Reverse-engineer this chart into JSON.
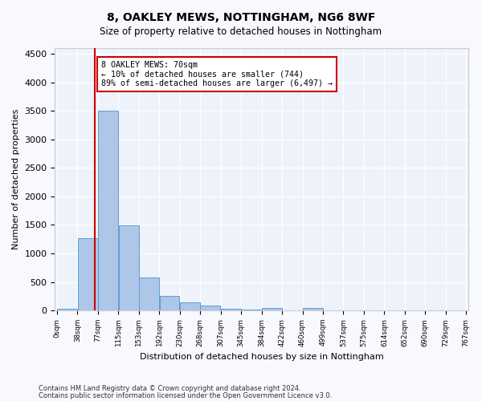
{
  "title1": "8, OAKLEY MEWS, NOTTINGHAM, NG6 8WF",
  "title2": "Size of property relative to detached houses in Nottingham",
  "xlabel": "Distribution of detached houses by size in Nottingham",
  "ylabel": "Number of detached properties",
  "bin_labels": [
    "0sqm",
    "38sqm",
    "77sqm",
    "115sqm",
    "153sqm",
    "192sqm",
    "230sqm",
    "268sqm",
    "307sqm",
    "345sqm",
    "384sqm",
    "422sqm",
    "460sqm",
    "499sqm",
    "537sqm",
    "575sqm",
    "614sqm",
    "652sqm",
    "690sqm",
    "729sqm",
    "767sqm"
  ],
  "bar_values": [
    30,
    1270,
    3500,
    1490,
    580,
    250,
    135,
    80,
    30,
    20,
    50,
    0,
    50,
    0,
    0,
    0,
    0,
    0,
    0,
    0
  ],
  "bar_color": "#aec6e8",
  "bar_edge_color": "#5a9ed6",
  "vline_x": 70,
  "annotation_title": "8 OAKLEY MEWS: 70sqm",
  "annotation_line1": "← 10% of detached houses are smaller (744)",
  "annotation_line2": "89% of semi-detached houses are larger (6,497) →",
  "vline_color": "#cc0000",
  "annotation_edge_color": "#cc0000",
  "ylim": [
    0,
    4600
  ],
  "yticks": [
    0,
    500,
    1000,
    1500,
    2000,
    2500,
    3000,
    3500,
    4000,
    4500
  ],
  "footer1": "Contains HM Land Registry data © Crown copyright and database right 2024.",
  "footer2": "Contains public sector information licensed under the Open Government Licence v3.0.",
  "plot_bg_color": "#eef2fb",
  "fig_bg_color": "#f8f8ff",
  "bin_width": 38
}
